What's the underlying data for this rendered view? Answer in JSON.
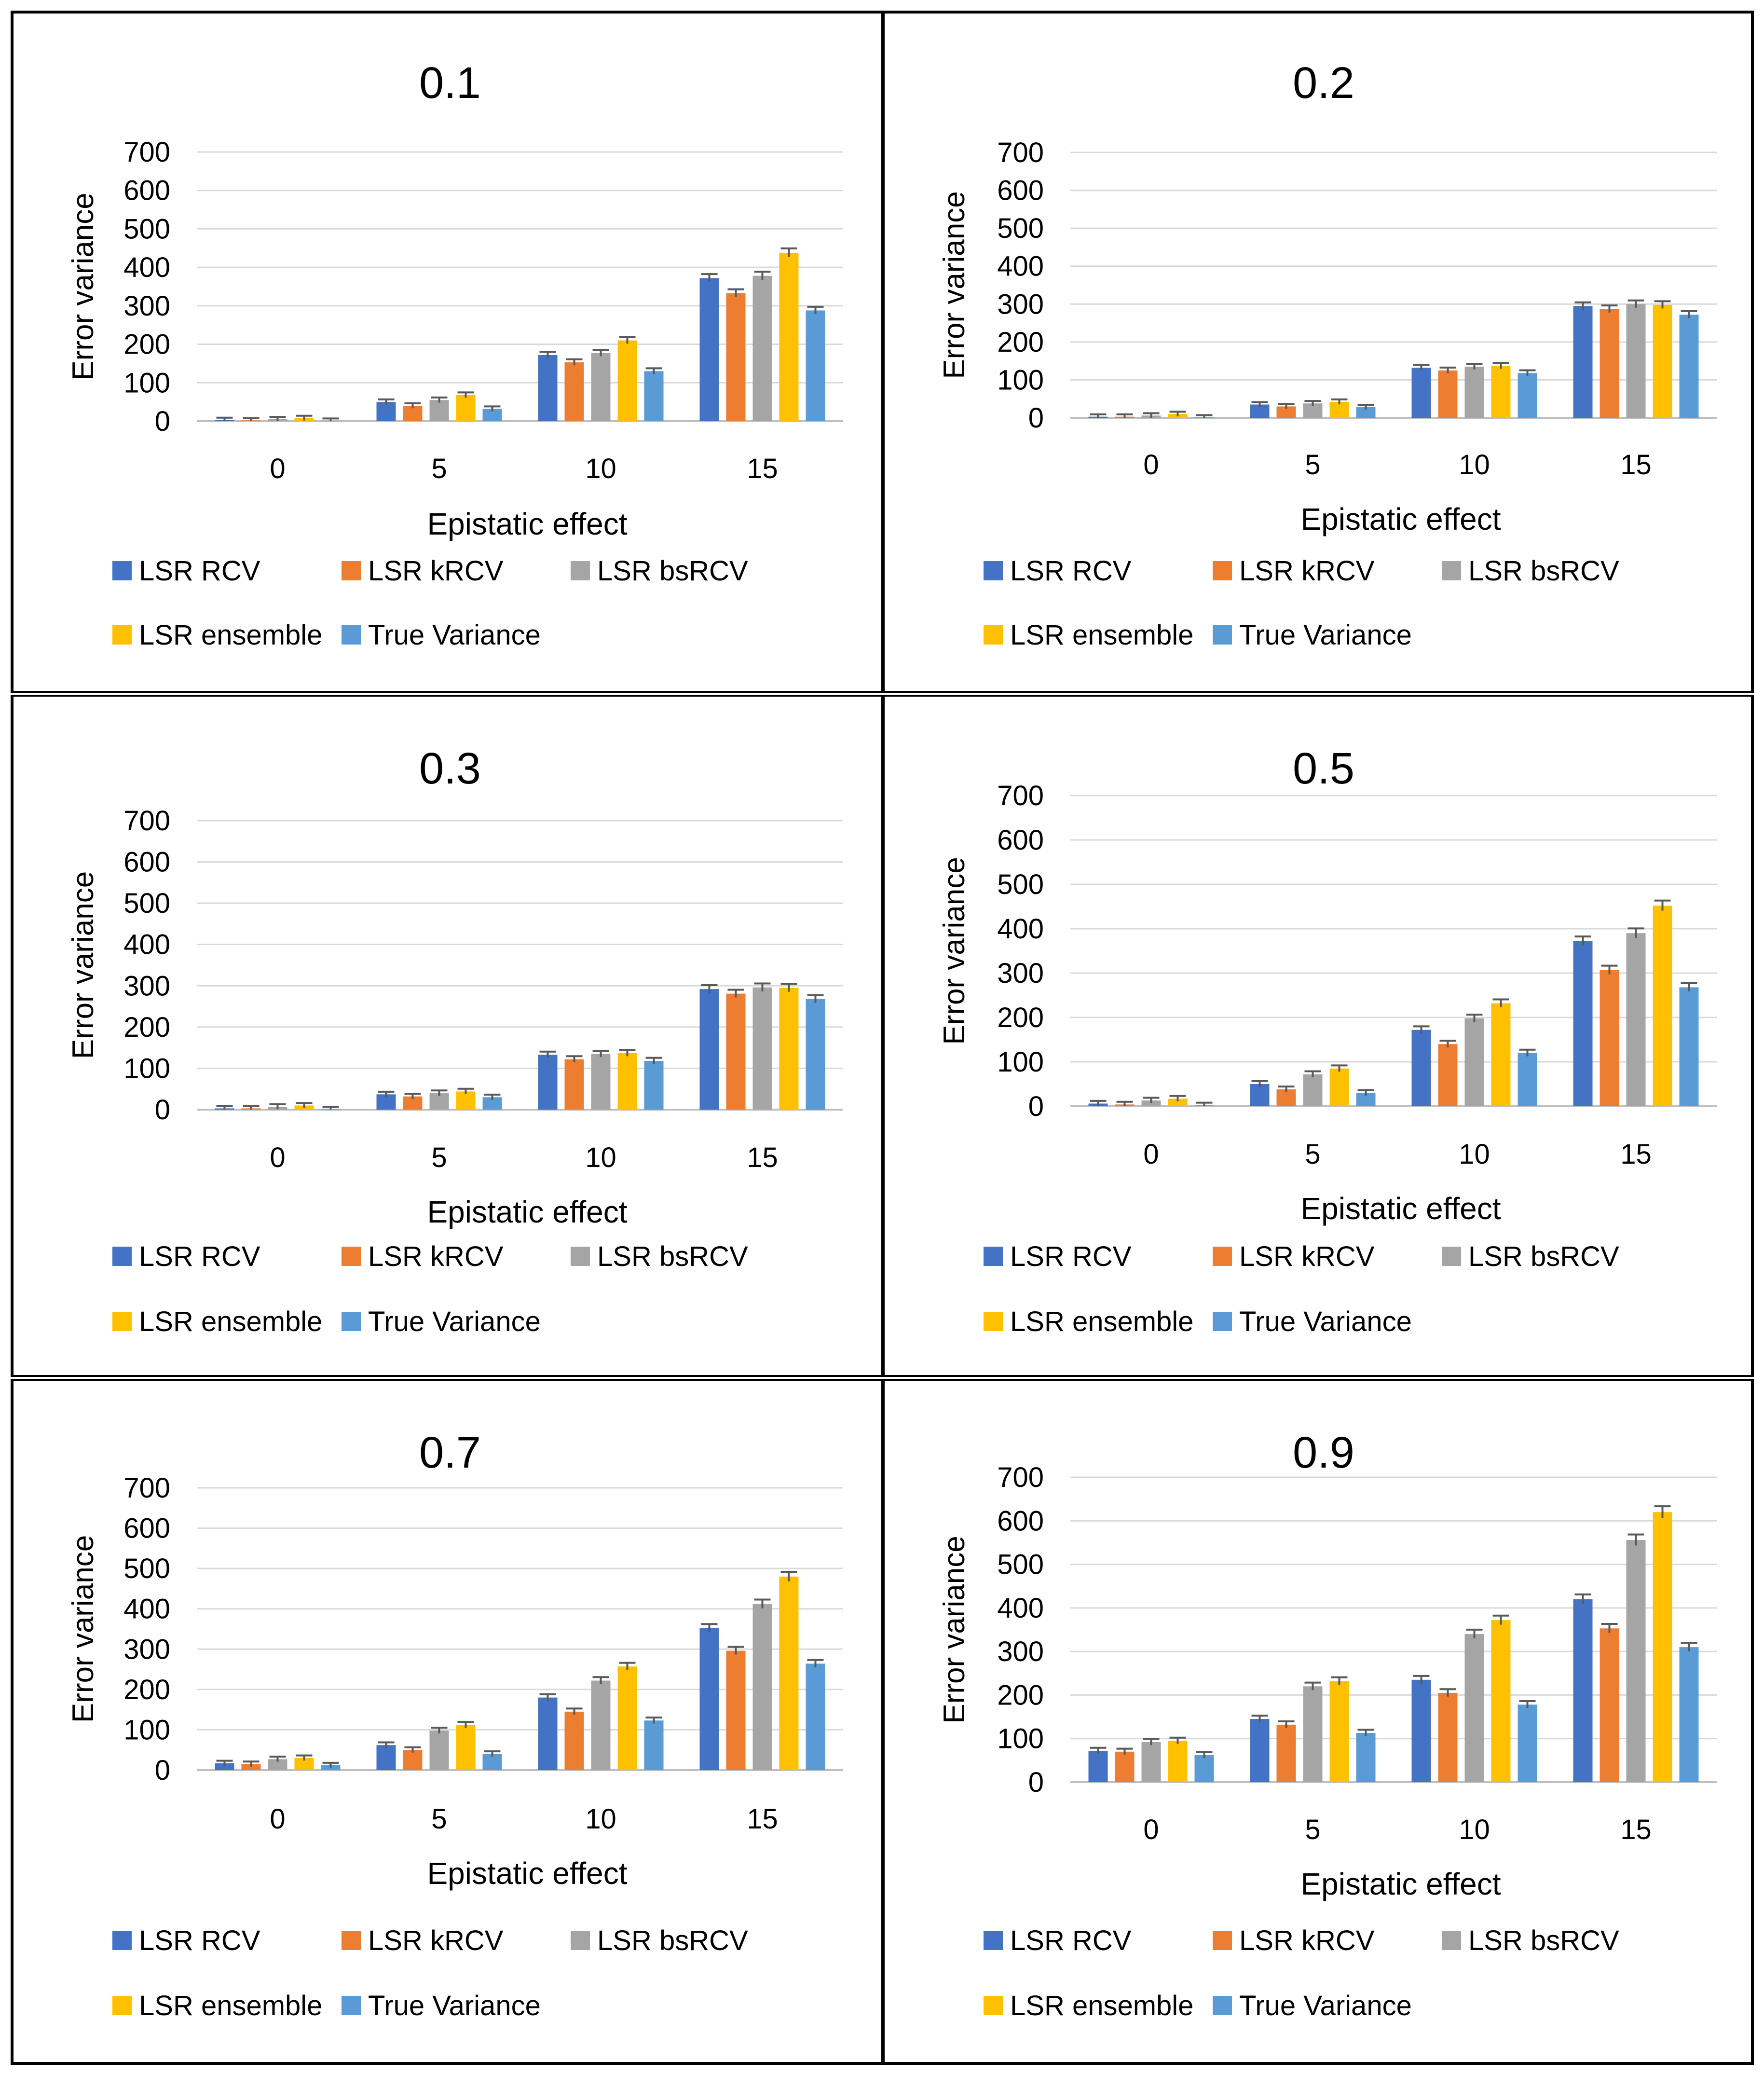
{
  "figure": {
    "legend_colors": {
      "LSR RCV": "#4472C4",
      "LSR kRCV": "#ED7D31",
      "LSR bsRCV": "#A5A5A5",
      "LSR ensemble": "#FFC000",
      "True Variance": "#5B9BD5"
    }
  },
  "chart_data": [
    {
      "type": "bar",
      "title": "0.1",
      "xlabel": "Epistatic effect",
      "ylabel": "Error variance",
      "categories": [
        "0",
        "5",
        "10",
        "15"
      ],
      "ylim": [
        0,
        700
      ],
      "yticks": [
        "0",
        "100",
        "200",
        "300",
        "400",
        "500",
        "600",
        "700"
      ],
      "legend_position": "bottom",
      "series": [
        {
          "name": "LSR RCV",
          "values": [
            3,
            50,
            172,
            372
          ]
        },
        {
          "name": "LSR kRCV",
          "values": [
            2,
            40,
            153,
            333
          ]
        },
        {
          "name": "LSR bsRCV",
          "values": [
            5,
            55,
            177,
            378
          ]
        },
        {
          "name": "LSR ensemble",
          "values": [
            8,
            68,
            210,
            438
          ]
        },
        {
          "name": "True Variance",
          "values": [
            1,
            32,
            130,
            288
          ]
        }
      ]
    },
    {
      "type": "bar",
      "title": "0.2",
      "xlabel": "Epistatic effect",
      "ylabel": "Error variance",
      "categories": [
        "0",
        "5",
        "10",
        "15"
      ],
      "ylim": [
        0,
        700
      ],
      "yticks": [
        "0",
        "100",
        "200",
        "300",
        "400",
        "500",
        "600",
        "700"
      ],
      "legend_position": "bottom",
      "series": [
        {
          "name": "LSR RCV",
          "values": [
            3,
            35,
            132,
            295
          ]
        },
        {
          "name": "LSR kRCV",
          "values": [
            3,
            30,
            125,
            287
          ]
        },
        {
          "name": "LSR bsRCV",
          "values": [
            6,
            38,
            135,
            300
          ]
        },
        {
          "name": "LSR ensemble",
          "values": [
            10,
            42,
            137,
            298
          ]
        },
        {
          "name": "True Variance",
          "values": [
            1,
            28,
            118,
            272
          ]
        }
      ]
    },
    {
      "type": "bar",
      "title": "0.3",
      "xlabel": "Epistatic effect",
      "ylabel": "Error variance",
      "categories": [
        "0",
        "5",
        "10",
        "15"
      ],
      "ylim": [
        0,
        700
      ],
      "yticks": [
        "0",
        "100",
        "200",
        "300",
        "400",
        "500",
        "600",
        "700"
      ],
      "legend_position": "bottom",
      "series": [
        {
          "name": "LSR RCV",
          "values": [
            3,
            37,
            133,
            292
          ]
        },
        {
          "name": "LSR kRCV",
          "values": [
            3,
            32,
            122,
            281
          ]
        },
        {
          "name": "LSR bsRCV",
          "values": [
            7,
            40,
            135,
            296
          ]
        },
        {
          "name": "LSR ensemble",
          "values": [
            10,
            44,
            137,
            295
          ]
        },
        {
          "name": "True Variance",
          "values": [
            1,
            30,
            118,
            268
          ]
        }
      ]
    },
    {
      "type": "bar",
      "title": "0.5",
      "xlabel": "Epistatic effect",
      "ylabel": "Error variance",
      "categories": [
        "0",
        "5",
        "10",
        "15"
      ],
      "ylim": [
        0,
        700
      ],
      "yticks": [
        "0",
        "100",
        "200",
        "300",
        "400",
        "500",
        "600",
        "700"
      ],
      "legend_position": "bottom",
      "series": [
        {
          "name": "LSR RCV",
          "values": [
            6,
            50,
            172,
            372
          ]
        },
        {
          "name": "LSR kRCV",
          "values": [
            4,
            38,
            140,
            307
          ]
        },
        {
          "name": "LSR bsRCV",
          "values": [
            13,
            72,
            198,
            390
          ]
        },
        {
          "name": "LSR ensemble",
          "values": [
            17,
            85,
            232,
            452
          ]
        },
        {
          "name": "True Variance",
          "values": [
            2,
            30,
            120,
            268
          ]
        }
      ]
    },
    {
      "type": "bar",
      "title": "0.7",
      "xlabel": "Epistatic effect",
      "ylabel": "Error variance",
      "categories": [
        "0",
        "5",
        "10",
        "15"
      ],
      "ylim": [
        0,
        700
      ],
      "yticks": [
        "0",
        "100",
        "200",
        "300",
        "400",
        "500",
        "600",
        "700"
      ],
      "legend_position": "bottom",
      "series": [
        {
          "name": "LSR RCV",
          "values": [
            17,
            62,
            180,
            352
          ]
        },
        {
          "name": "LSR kRCV",
          "values": [
            15,
            50,
            145,
            296
          ]
        },
        {
          "name": "LSR bsRCV",
          "values": [
            27,
            98,
            222,
            412
          ]
        },
        {
          "name": "LSR ensemble",
          "values": [
            30,
            112,
            257,
            480
          ]
        },
        {
          "name": "True Variance",
          "values": [
            12,
            40,
            123,
            264
          ]
        }
      ]
    },
    {
      "type": "bar",
      "title": "0.9",
      "xlabel": "Epistatic effect",
      "ylabel": "Error variance",
      "categories": [
        "0",
        "5",
        "10",
        "15"
      ],
      "ylim": [
        0,
        700
      ],
      "yticks": [
        "0",
        "100",
        "200",
        "300",
        "400",
        "500",
        "600",
        "700"
      ],
      "legend_position": "bottom",
      "series": [
        {
          "name": "LSR RCV",
          "values": [
            72,
            145,
            235,
            420
          ]
        },
        {
          "name": "LSR kRCV",
          "values": [
            70,
            132,
            205,
            353
          ]
        },
        {
          "name": "LSR bsRCV",
          "values": [
            92,
            220,
            340,
            556
          ]
        },
        {
          "name": "LSR ensemble",
          "values": [
            95,
            232,
            372,
            620
          ]
        },
        {
          "name": "True Variance",
          "values": [
            62,
            113,
            178,
            310
          ]
        }
      ]
    }
  ]
}
